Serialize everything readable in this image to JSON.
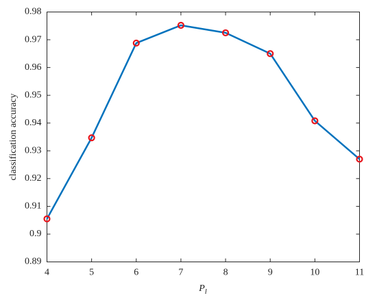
{
  "chart_data": {
    "type": "line",
    "xlabel": "P",
    "xlabel_subscript": "l",
    "ylabel": "classification accuracy",
    "x": [
      4,
      5,
      6,
      7,
      8,
      9,
      10,
      11
    ],
    "series": [
      {
        "color": "#0072bd",
        "marker_color": "#e8141b",
        "values": [
          0.9055,
          0.9347,
          0.9688,
          0.9752,
          0.9725,
          0.965,
          0.9408,
          0.927
        ]
      }
    ],
    "xlim": [
      4,
      11
    ],
    "xticks": [
      4,
      5,
      6,
      7,
      8,
      9,
      10,
      11
    ],
    "ylim": [
      0.89,
      0.98
    ],
    "yticks": [
      0.89,
      0.9,
      0.91,
      0.92,
      0.93,
      0.94,
      0.95,
      0.96,
      0.97,
      0.98
    ],
    "grid": false
  }
}
